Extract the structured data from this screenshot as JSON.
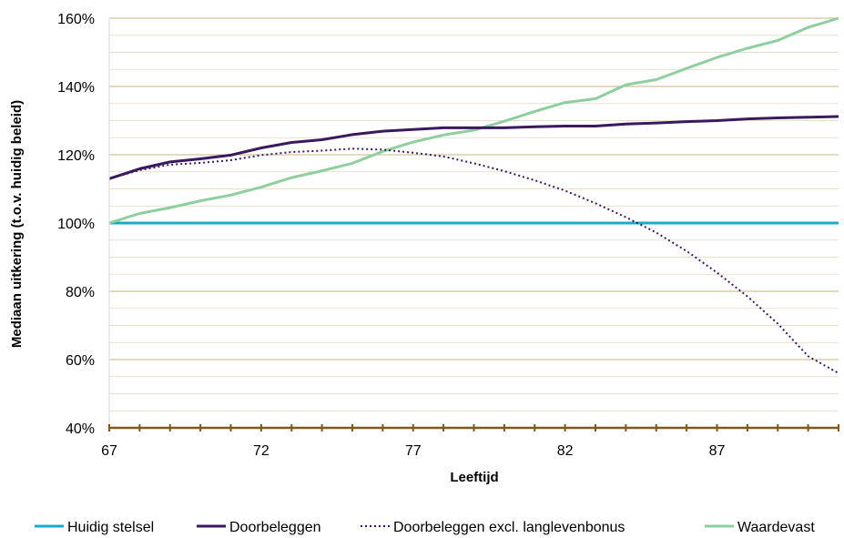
{
  "chart_data": {
    "type": "line",
    "title": "",
    "xlabel": "Leeftijd",
    "ylabel": "Mediaan uitkering (t.o.v. huidig beleid)",
    "xlim": [
      67,
      91
    ],
    "ylim": [
      40,
      160
    ],
    "x_ticks": [
      67,
      72,
      77,
      82,
      87
    ],
    "y_ticks": [
      "40%",
      "60%",
      "80%",
      "100%",
      "120%",
      "140%",
      "160%"
    ],
    "y_tick_values": [
      40,
      60,
      80,
      100,
      120,
      140,
      160
    ],
    "grid": "horizontal minor every 5%",
    "legend_position": "bottom",
    "x": [
      67,
      68,
      69,
      70,
      71,
      72,
      73,
      74,
      75,
      76,
      77,
      78,
      79,
      80,
      81,
      82,
      83,
      84,
      85,
      86,
      87,
      88,
      89,
      90,
      91
    ],
    "series": [
      {
        "name": "Huidig stelsel",
        "color": "#1BA8C9",
        "style": "solid",
        "values": [
          100,
          100,
          100,
          100,
          100,
          100,
          100,
          100,
          100,
          100,
          100,
          100,
          100,
          100,
          100,
          100,
          100,
          100,
          100,
          100,
          100,
          100,
          100,
          100,
          100
        ]
      },
      {
        "name": "Doorbeleggen",
        "color": "#3A1A5E",
        "style": "solid",
        "values": [
          113.0,
          115.9,
          117.9,
          118.8,
          119.9,
          122.0,
          123.6,
          124.4,
          125.9,
          126.9,
          127.4,
          127.9,
          127.9,
          127.9,
          128.2,
          128.4,
          128.4,
          129.0,
          129.3,
          129.7,
          130.0,
          130.5,
          130.8,
          131.0,
          131.2
        ]
      },
      {
        "name": "Doorbeleggen excl. langlevenbonus",
        "color": "#3A1A5E",
        "style": "dotted",
        "values": [
          113.0,
          115.5,
          117.1,
          117.6,
          118.4,
          119.9,
          120.8,
          121.2,
          121.8,
          121.5,
          120.6,
          119.5,
          117.5,
          115.2,
          112.5,
          109.5,
          105.8,
          101.7,
          97.2,
          91.8,
          85.5,
          78.5,
          70.5,
          61.0,
          56.0
        ]
      },
      {
        "name": "Waardevast",
        "color": "#8FCF9F",
        "style": "solid",
        "values": [
          100.0,
          102.8,
          104.5,
          106.5,
          108.2,
          110.5,
          113.3,
          115.3,
          117.5,
          121.0,
          123.7,
          125.8,
          127.2,
          129.8,
          132.7,
          135.3,
          136.4,
          140.5,
          142.0,
          145.3,
          148.5,
          151.2,
          153.5,
          157.3,
          160.0
        ]
      }
    ]
  }
}
